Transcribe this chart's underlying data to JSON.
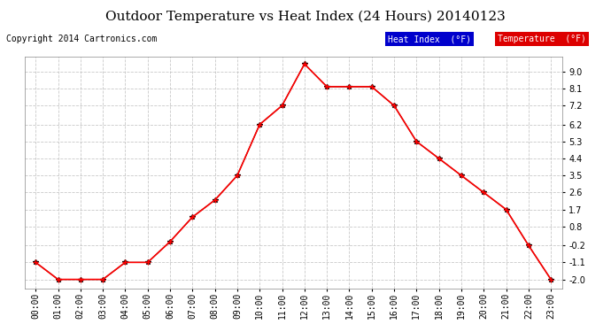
{
  "title": "Outdoor Temperature vs Heat Index (24 Hours) 20140123",
  "copyright": "Copyright 2014 Cartronics.com",
  "hours": [
    "00:00",
    "01:00",
    "02:00",
    "03:00",
    "04:00",
    "05:00",
    "06:00",
    "07:00",
    "08:00",
    "09:00",
    "10:00",
    "11:00",
    "12:00",
    "13:00",
    "14:00",
    "15:00",
    "16:00",
    "17:00",
    "18:00",
    "19:00",
    "20:00",
    "21:00",
    "22:00",
    "23:00"
  ],
  "temperature": [
    -1.1,
    -2.0,
    -2.0,
    -2.0,
    -1.1,
    -1.1,
    0.0,
    1.3,
    2.2,
    3.5,
    6.2,
    7.2,
    9.4,
    8.2,
    8.2,
    8.2,
    7.2,
    5.3,
    4.4,
    3.5,
    2.6,
    1.7,
    -0.2,
    -2.0
  ],
  "heat_index": [
    -1.1,
    -2.0,
    -2.0,
    -2.0,
    -1.1,
    -1.1,
    0.0,
    1.3,
    2.2,
    3.5,
    6.2,
    7.2,
    9.4,
    8.2,
    8.2,
    8.2,
    7.2,
    5.3,
    4.4,
    3.5,
    2.6,
    1.7,
    -0.2,
    -2.0
  ],
  "temp_color": "#ff0000",
  "heat_index_color": "#000000",
  "yticks": [
    -2.0,
    -1.1,
    -0.2,
    0.8,
    1.7,
    2.6,
    3.5,
    4.4,
    5.3,
    6.2,
    7.2,
    8.1,
    9.0
  ],
  "ylim": [
    -2.5,
    9.8
  ],
  "xlim": [
    -0.5,
    23.5
  ],
  "background_color": "#ffffff",
  "grid_color": "#bbbbbb",
  "legend_heat_bg": "#0000cc",
  "legend_temp_bg": "#dd0000",
  "legend_heat_label": "Heat Index  (°F)",
  "legend_temp_label": "Temperature  (°F)",
  "title_fontsize": 11,
  "tick_fontsize": 7,
  "copyright_fontsize": 7
}
